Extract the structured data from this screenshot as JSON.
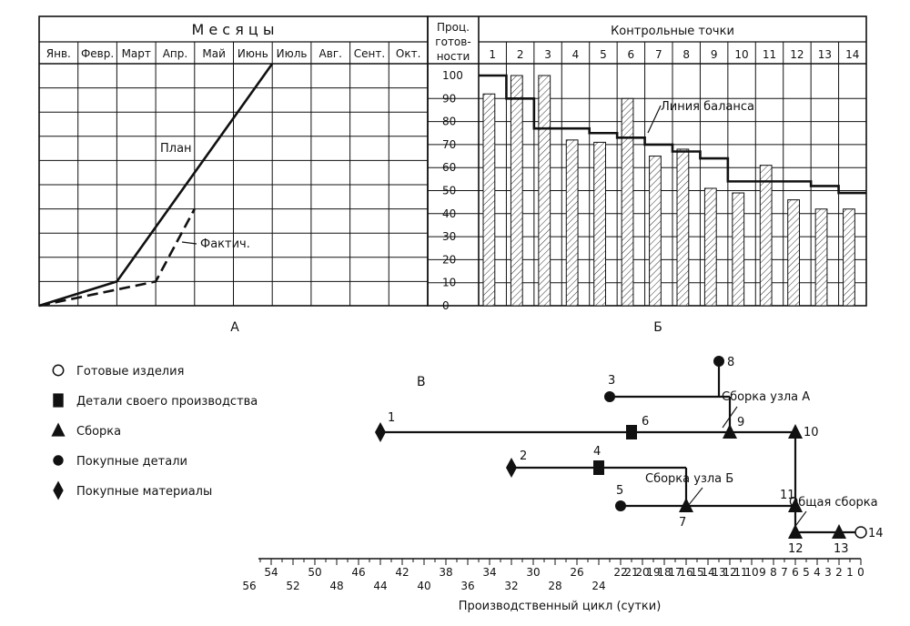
{
  "panel_a": {
    "caption": "А",
    "header": "М е с я ц ы",
    "months": [
      "Янв.",
      "Февр.",
      "Март",
      "Апр.",
      "Май",
      "Июнь",
      "Июль",
      "Авг.",
      "Сент.",
      "Окт."
    ],
    "plan_label": "План",
    "fact_label": "Фактич.",
    "plan_line": [
      [
        0,
        0
      ],
      [
        2,
        10
      ],
      [
        6,
        100
      ]
    ],
    "fact_line": [
      [
        0,
        0
      ],
      [
        3,
        10
      ],
      [
        4,
        40
      ]
    ]
  },
  "panel_b": {
    "caption": "Б",
    "pct_header": [
      "Проц.",
      "готов-",
      "ности"
    ],
    "cp_header": "Контрольные точки",
    "checkpoints": [
      "1",
      "2",
      "3",
      "4",
      "5",
      "6",
      "7",
      "8",
      "9",
      "10",
      "11",
      "12",
      "13",
      "14"
    ],
    "y_ticks": [
      "0",
      "10",
      "20",
      "30",
      "40",
      "50",
      "60",
      "70",
      "80",
      "90",
      "100"
    ],
    "balance_label": "Линия баланса"
  },
  "chart_data": {
    "type": "bar",
    "categories": [
      "1",
      "2",
      "3",
      "4",
      "5",
      "6",
      "7",
      "8",
      "9",
      "10",
      "11",
      "12",
      "13",
      "14"
    ],
    "values": [
      92,
      100,
      100,
      72,
      71,
      90,
      65,
      68,
      51,
      49,
      61,
      46,
      42,
      42
    ],
    "balance_line": [
      100,
      90,
      77,
      77,
      75,
      73,
      70,
      67,
      64,
      54,
      54,
      54,
      52,
      49
    ],
    "ylim": [
      0,
      100
    ],
    "ylabel": "Проц. готовности",
    "xlabel": "Контрольные точки",
    "series_labels": [
      "Линия баланса"
    ]
  },
  "panel_c": {
    "caption": "В",
    "legend": [
      {
        "shape": "circle-open",
        "label": "Готовые изделия"
      },
      {
        "shape": "square",
        "label": "Детали своего производства"
      },
      {
        "shape": "triangle",
        "label": "Сборка"
      },
      {
        "shape": "circle",
        "label": "Покупные детали"
      },
      {
        "shape": "diamond",
        "label": "Покупные материалы"
      }
    ],
    "labels": {
      "assembly_a": "Сборка узла А",
      "assembly_b": "Сборка узла Б",
      "general": "Общая сборка"
    },
    "axis_title": "Производственный цикл (сутки)",
    "axis_top_labels": [
      "54",
      "50",
      "46",
      "42",
      "38",
      "34",
      "30",
      "26",
      "22",
      "21",
      "20",
      "19",
      "18",
      "17",
      "16",
      "15",
      "14",
      "13",
      "12",
      "11",
      "10",
      "9",
      "8",
      "7",
      "6",
      "5",
      "4",
      "3",
      "2",
      "1",
      "0"
    ],
    "axis_bottom_labels": [
      "56",
      "52",
      "48",
      "44",
      "40",
      "36",
      "32",
      "28",
      "24"
    ],
    "nodes": [
      {
        "id": "1",
        "day": 44,
        "row": 1,
        "shape": "diamond"
      },
      {
        "id": "2",
        "day": 32,
        "row": 2,
        "shape": "diamond"
      },
      {
        "id": "3",
        "day": 23,
        "row": 0,
        "shape": "circle"
      },
      {
        "id": "4",
        "day": 24,
        "row": 2,
        "shape": "square"
      },
      {
        "id": "5",
        "day": 22,
        "row": 3,
        "shape": "circle"
      },
      {
        "id": "6",
        "day": 21,
        "row": 1,
        "shape": "square"
      },
      {
        "id": "7",
        "day": 16,
        "row": 3,
        "shape": "triangle"
      },
      {
        "id": "8",
        "day": 13,
        "row": -1,
        "shape": "circle"
      },
      {
        "id": "9",
        "day": 12,
        "row": 1,
        "shape": "triangle"
      },
      {
        "id": "10",
        "day": 6,
        "row": 1,
        "shape": "triangle"
      },
      {
        "id": "11",
        "day": 6,
        "row": 3,
        "shape": "triangle"
      },
      {
        "id": "12",
        "day": 6,
        "row": 4,
        "shape": "triangle"
      },
      {
        "id": "13",
        "day": 2,
        "row": 4,
        "shape": "triangle"
      },
      {
        "id": "14",
        "day": 0,
        "row": 4,
        "shape": "circle-open"
      }
    ]
  }
}
